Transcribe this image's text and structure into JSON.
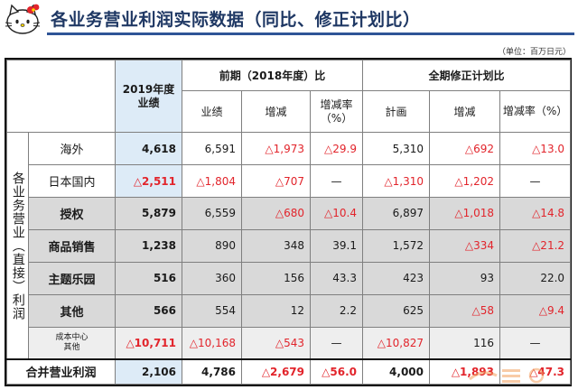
{
  "title": "各业务营业利润实际数据（同比、修正计划比）",
  "unit": "（单位：百万日元）",
  "table": {
    "vertical_label": "各业务营业（直接）利润",
    "h_current": "2019年度业绩",
    "h_prev": "前期（2018年度）比",
    "h_plan": "全期修正计划比",
    "h_prev_result": "业绩",
    "h_prev_change": "增减",
    "h_prev_rate": "增减率（%）",
    "h_plan_plan": "計画",
    "h_plan_change": "增减",
    "h_plan_rate": "增减率（%）",
    "rows": [
      {
        "label": "海外",
        "cur": "4,618",
        "prev": "6,591",
        "chg": "△1,973",
        "rate": "△29.9",
        "plan": "5,310",
        "pchg": "△692",
        "prate": "△13.0"
      },
      {
        "label": "日本国内",
        "cur": "△2,511",
        "prev": "△1,804",
        "chg": "△707",
        "rate": "—",
        "plan": "△1,310",
        "pchg": "△1,202",
        "prate": "—"
      },
      {
        "label": "授权",
        "cur": "5,879",
        "prev": "6,559",
        "chg": "△680",
        "rate": "△10.4",
        "plan": "6,897",
        "pchg": "△1,018",
        "prate": "△14.8"
      },
      {
        "label": "商品销售",
        "cur": "1,238",
        "prev": "890",
        "chg": "348",
        "rate": "39.1",
        "plan": "1,572",
        "pchg": "△334",
        "prate": "△21.2"
      },
      {
        "label": "主题乐园",
        "cur": "516",
        "prev": "360",
        "chg": "156",
        "rate": "43.3",
        "plan": "423",
        "pchg": "93",
        "prate": "22.0"
      },
      {
        "label": "其他",
        "cur": "566",
        "prev": "554",
        "chg": "12",
        "rate": "2.2",
        "plan": "625",
        "pchg": "△58",
        "prate": "△9.4"
      },
      {
        "label": "成本中心",
        "label2": "其他",
        "cur": "△10,711",
        "prev": "△10,168",
        "chg": "△543",
        "rate": "—",
        "plan": "△10,827",
        "pchg": "116",
        "prate": "—"
      }
    ],
    "total": {
      "label": "合并营业利润",
      "cur": "2,106",
      "prev": "4,786",
      "chg": "△2,679",
      "rate": "△56.0",
      "plan": "4,000",
      "pchg": "△1,893",
      "prate": "△47.3"
    }
  },
  "colors": {
    "title": "#1f3864",
    "rule": "#2f5496",
    "negative": "#e2242b",
    "highlight": "#ddebf7",
    "gray": "#d9d9d9"
  },
  "icons": {
    "logo": "hello-kitty-logo",
    "watermark": "watermark-logo"
  }
}
